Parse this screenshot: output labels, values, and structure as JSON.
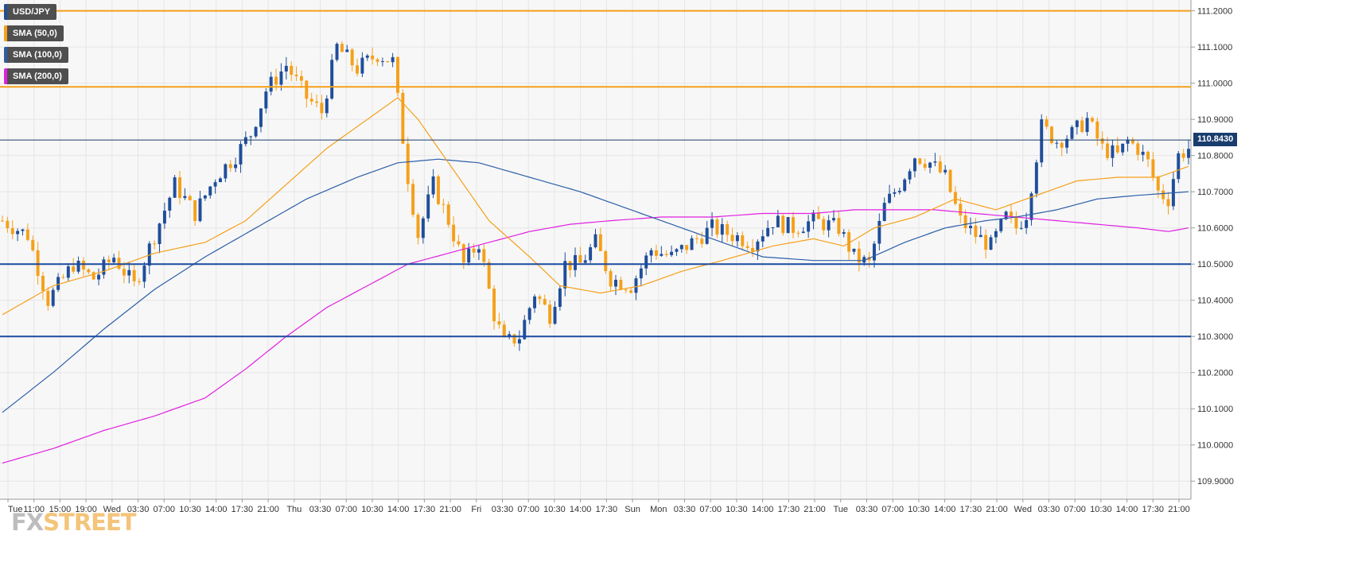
{
  "legend": {
    "instrument": "USD/JPY",
    "sma50": "SMA (50,0)",
    "sma100": "SMA (100,0)",
    "sma200": "SMA (200,0)"
  },
  "price_label": "110.8430",
  "logo": {
    "part1": "FX",
    "part2": "STREET"
  },
  "colors": {
    "up": "#1f4e9a",
    "down": "#f5a01a",
    "sma50": "#f5a01a",
    "sma100": "#2c5fa8",
    "sma200": "#e020e0",
    "resistance": "#f5a01a",
    "support": "#1a4aa0",
    "current": "#1a3d6e",
    "plot_bg": "#f7f7f7",
    "grid": "#e6e6e6"
  },
  "chart_data": {
    "type": "candlestick",
    "ylim": [
      109.85,
      111.23
    ],
    "y_ticks": [
      "111.2000",
      "111.1000",
      "111.0000",
      "110.9000",
      "110.8000",
      "110.7000",
      "110.6000",
      "110.5000",
      "110.4000",
      "110.3000",
      "110.2000",
      "110.1000",
      "110.0000",
      "109.9000"
    ],
    "x_ticks": [
      "Tue",
      "11:00",
      "15:00",
      "19:00",
      "Wed",
      "03:30",
      "07:00",
      "10:30",
      "14:00",
      "17:30",
      "21:00",
      "Thu",
      "03:30",
      "07:00",
      "10:30",
      "14:00",
      "17:30",
      "21:00",
      "Fri",
      "03:30",
      "07:00",
      "10:30",
      "14:00",
      "17:30",
      "Sun",
      "Mon",
      "03:30",
      "07:00",
      "10:30",
      "14:00",
      "17:30",
      "21:00",
      "Tue",
      "03:30",
      "07:00",
      "10:30",
      "14:00",
      "17:30",
      "21:00",
      "Wed",
      "03:30",
      "07:00",
      "10:30",
      "14:00",
      "17:30",
      "21:00"
    ],
    "horizontal_levels": {
      "resistance": [
        111.2,
        110.99
      ],
      "support": [
        110.5,
        110.3
      ],
      "current_price": 110.843
    },
    "close_path": [
      [
        0,
        110.62
      ],
      [
        5,
        110.58
      ],
      [
        9,
        110.4
      ],
      [
        14,
        110.5
      ],
      [
        18,
        110.46
      ],
      [
        22,
        110.52
      ],
      [
        26,
        110.44
      ],
      [
        30,
        110.58
      ],
      [
        34,
        110.72
      ],
      [
        38,
        110.64
      ],
      [
        42,
        110.74
      ],
      [
        46,
        110.8
      ],
      [
        49,
        110.86
      ],
      [
        52,
        110.98
      ],
      [
        56,
        111.05
      ],
      [
        60,
        110.96
      ],
      [
        63,
        110.92
      ],
      [
        66,
        111.1
      ],
      [
        70,
        111.04
      ],
      [
        74,
        111.08
      ],
      [
        77,
        111.06
      ],
      [
        80,
        110.74
      ],
      [
        82,
        110.58
      ],
      [
        85,
        110.72
      ],
      [
        88,
        110.62
      ],
      [
        91,
        110.5
      ],
      [
        94,
        110.56
      ],
      [
        97,
        110.36
      ],
      [
        99,
        110.28
      ],
      [
        102,
        110.3
      ],
      [
        105,
        110.42
      ],
      [
        108,
        110.36
      ],
      [
        111,
        110.5
      ],
      [
        114,
        110.5
      ],
      [
        117,
        110.56
      ],
      [
        120,
        110.46
      ],
      [
        124,
        110.44
      ],
      [
        128,
        110.54
      ],
      [
        132,
        110.52
      ],
      [
        136,
        110.56
      ],
      [
        140,
        110.6
      ],
      [
        144,
        110.58
      ],
      [
        148,
        110.56
      ],
      [
        152,
        110.62
      ],
      [
        156,
        110.6
      ],
      [
        160,
        110.62
      ],
      [
        165,
        110.6
      ],
      [
        168,
        110.52
      ],
      [
        171,
        110.5
      ],
      [
        174,
        110.66
      ],
      [
        177,
        110.72
      ],
      [
        180,
        110.8
      ],
      [
        183,
        110.78
      ],
      [
        186,
        110.74
      ],
      [
        189,
        110.62
      ],
      [
        192,
        110.58
      ],
      [
        195,
        110.55
      ],
      [
        198,
        110.63
      ],
      [
        200,
        110.6
      ],
      [
        202,
        110.64
      ],
      [
        205,
        110.88
      ],
      [
        208,
        110.84
      ],
      [
        211,
        110.86
      ],
      [
        214,
        110.9
      ],
      [
        217,
        110.82
      ],
      [
        220,
        110.8
      ],
      [
        222,
        110.84
      ],
      [
        224,
        110.82
      ],
      [
        226,
        110.78
      ],
      [
        228,
        110.7
      ],
      [
        230,
        110.68
      ],
      [
        232,
        110.8
      ],
      [
        234,
        110.82
      ]
    ],
    "sma50_path": [
      [
        0,
        110.36
      ],
      [
        10,
        110.44
      ],
      [
        20,
        110.48
      ],
      [
        30,
        110.53
      ],
      [
        40,
        110.56
      ],
      [
        48,
        110.62
      ],
      [
        56,
        110.72
      ],
      [
        64,
        110.82
      ],
      [
        72,
        110.9
      ],
      [
        78,
        110.96
      ],
      [
        82,
        110.9
      ],
      [
        88,
        110.78
      ],
      [
        96,
        110.62
      ],
      [
        104,
        110.52
      ],
      [
        110,
        110.44
      ],
      [
        118,
        110.42
      ],
      [
        126,
        110.44
      ],
      [
        134,
        110.48
      ],
      [
        142,
        110.51
      ],
      [
        152,
        110.55
      ],
      [
        160,
        110.57
      ],
      [
        166,
        110.55
      ],
      [
        172,
        110.6
      ],
      [
        180,
        110.63
      ],
      [
        188,
        110.68
      ],
      [
        196,
        110.65
      ],
      [
        204,
        110.69
      ],
      [
        212,
        110.73
      ],
      [
        220,
        110.74
      ],
      [
        228,
        110.74
      ],
      [
        234,
        110.77
      ]
    ],
    "sma100_path": [
      [
        0,
        110.09
      ],
      [
        10,
        110.2
      ],
      [
        20,
        110.32
      ],
      [
        30,
        110.43
      ],
      [
        40,
        110.52
      ],
      [
        50,
        110.6
      ],
      [
        60,
        110.68
      ],
      [
        70,
        110.74
      ],
      [
        78,
        110.78
      ],
      [
        86,
        110.79
      ],
      [
        94,
        110.78
      ],
      [
        104,
        110.74
      ],
      [
        114,
        110.7
      ],
      [
        122,
        110.66
      ],
      [
        130,
        110.62
      ],
      [
        140,
        110.57
      ],
      [
        150,
        110.52
      ],
      [
        160,
        110.51
      ],
      [
        170,
        110.51
      ],
      [
        178,
        110.56
      ],
      [
        186,
        110.6
      ],
      [
        194,
        110.62
      ],
      [
        200,
        110.63
      ],
      [
        208,
        110.65
      ],
      [
        216,
        110.68
      ],
      [
        224,
        110.69
      ],
      [
        234,
        110.7
      ]
    ],
    "sma200_path": [
      [
        0,
        109.95
      ],
      [
        10,
        109.99
      ],
      [
        20,
        110.04
      ],
      [
        30,
        110.08
      ],
      [
        40,
        110.13
      ],
      [
        48,
        110.21
      ],
      [
        56,
        110.3
      ],
      [
        64,
        110.38
      ],
      [
        72,
        110.44
      ],
      [
        80,
        110.5
      ],
      [
        88,
        110.53
      ],
      [
        96,
        110.56
      ],
      [
        104,
        110.59
      ],
      [
        112,
        110.61
      ],
      [
        120,
        110.62
      ],
      [
        130,
        110.63
      ],
      [
        140,
        110.63
      ],
      [
        150,
        110.64
      ],
      [
        160,
        110.64
      ],
      [
        168,
        110.65
      ],
      [
        176,
        110.65
      ],
      [
        184,
        110.65
      ],
      [
        192,
        110.64
      ],
      [
        200,
        110.63
      ],
      [
        208,
        110.62
      ],
      [
        216,
        110.61
      ],
      [
        224,
        110.6
      ],
      [
        230,
        110.59
      ],
      [
        234,
        110.6
      ]
    ]
  }
}
